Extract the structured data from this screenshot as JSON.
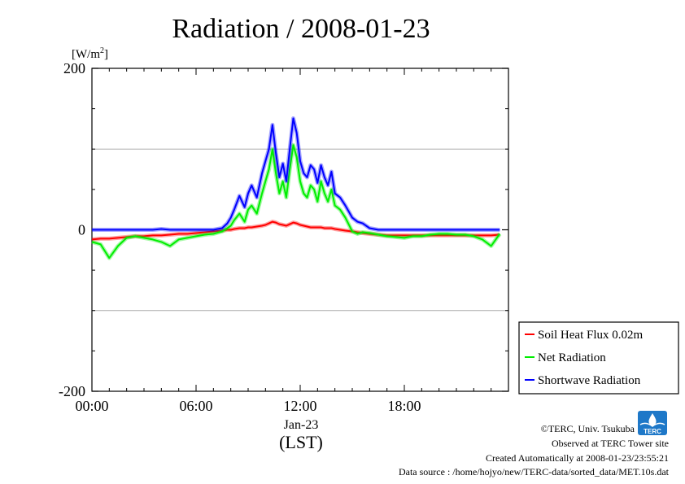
{
  "chart_data": {
    "type": "line",
    "title": "Radiation / 2008-01-23",
    "ylabel_unit": "[W/m",
    "ylabel_unit_sup": "2",
    "ylabel_unit_close": "]",
    "ylim": [
      -200,
      200
    ],
    "yticks": [
      -200,
      0,
      200
    ],
    "ytick_labels": [
      "-200",
      "0",
      "200"
    ],
    "ygrid": [
      -100,
      100
    ],
    "xlim": [
      0,
      24
    ],
    "xticks": [
      0,
      6,
      12,
      18
    ],
    "xtick_labels": [
      "00:00",
      "06:00",
      "12:00",
      "18:00"
    ],
    "xdate_label": "Jan-23",
    "xlabel": "(LST)",
    "x": [
      0,
      0.5,
      1,
      1.5,
      2,
      2.5,
      3,
      3.5,
      4,
      4.5,
      5,
      5.5,
      6,
      6.5,
      7,
      7.5,
      7.8,
      8,
      8.2,
      8.5,
      8.8,
      9,
      9.2,
      9.5,
      9.8,
      10,
      10.2,
      10.4,
      10.6,
      10.8,
      11,
      11.2,
      11.4,
      11.6,
      11.8,
      12,
      12.2,
      12.4,
      12.6,
      12.8,
      13,
      13.2,
      13.4,
      13.6,
      13.8,
      14,
      14.3,
      14.6,
      15,
      15.3,
      15.6,
      16,
      16.5,
      17,
      17.5,
      18,
      18.5,
      19,
      19.5,
      20,
      20.5,
      21,
      21.5,
      22,
      22.5,
      23,
      23.5
    ],
    "series": [
      {
        "name": "Soil Heat Flux 0.02m",
        "color": "#ff0000",
        "values": [
          -12,
          -11,
          -11,
          -10,
          -9,
          -8,
          -8,
          -7,
          -7,
          -6,
          -5,
          -5,
          -4,
          -3,
          -2,
          -1,
          0,
          0,
          1,
          2,
          2,
          3,
          3,
          4,
          5,
          6,
          8,
          10,
          9,
          7,
          6,
          5,
          7,
          9,
          8,
          6,
          5,
          4,
          3,
          3,
          3,
          3,
          2,
          2,
          2,
          1,
          0,
          -1,
          -2,
          -3,
          -4,
          -5,
          -6,
          -7,
          -7,
          -7,
          -7,
          -7,
          -7,
          -7,
          -7,
          -7,
          -7,
          -7,
          -7,
          -7,
          -6
        ]
      },
      {
        "name": "Net Radiation",
        "color": "#00ee00",
        "values": [
          -15,
          -18,
          -35,
          -20,
          -10,
          -8,
          -10,
          -12,
          -15,
          -20,
          -12,
          -10,
          -8,
          -6,
          -5,
          -2,
          2,
          5,
          12,
          20,
          10,
          25,
          30,
          20,
          45,
          60,
          75,
          100,
          70,
          45,
          60,
          40,
          75,
          105,
          90,
          60,
          45,
          40,
          55,
          50,
          35,
          60,
          45,
          35,
          50,
          30,
          25,
          15,
          -2,
          -5,
          -3,
          -4,
          -6,
          -8,
          -9,
          -10,
          -8,
          -8,
          -6,
          -5,
          -5,
          -6,
          -6,
          -8,
          -12,
          -20,
          -5
        ]
      },
      {
        "name": "Shortwave Radiation",
        "color": "#0000ff",
        "values": [
          0,
          0,
          0,
          0,
          0,
          0,
          0,
          0,
          1,
          0,
          0,
          0,
          0,
          0,
          0,
          2,
          8,
          15,
          25,
          42,
          28,
          45,
          55,
          40,
          70,
          85,
          100,
          130,
          95,
          65,
          82,
          60,
          100,
          138,
          120,
          85,
          70,
          65,
          80,
          75,
          58,
          80,
          65,
          55,
          72,
          45,
          40,
          30,
          15,
          10,
          8,
          2,
          0,
          0,
          0,
          0,
          0,
          0,
          0,
          0,
          0,
          0,
          0,
          0,
          0,
          0,
          0
        ]
      }
    ],
    "legend_position": "right-bottom"
  },
  "credits": {
    "copyright": "©TERC, Univ. Tsukuba",
    "observed": "Observed at TERC Tower site",
    "created": "Created Automatically at 2008-01-23/23:55:21",
    "source": "Data source : /home/hojyo/new/TERC-data/sorted_data/MET.10s.dat"
  },
  "logo": {
    "text": "TERC"
  }
}
